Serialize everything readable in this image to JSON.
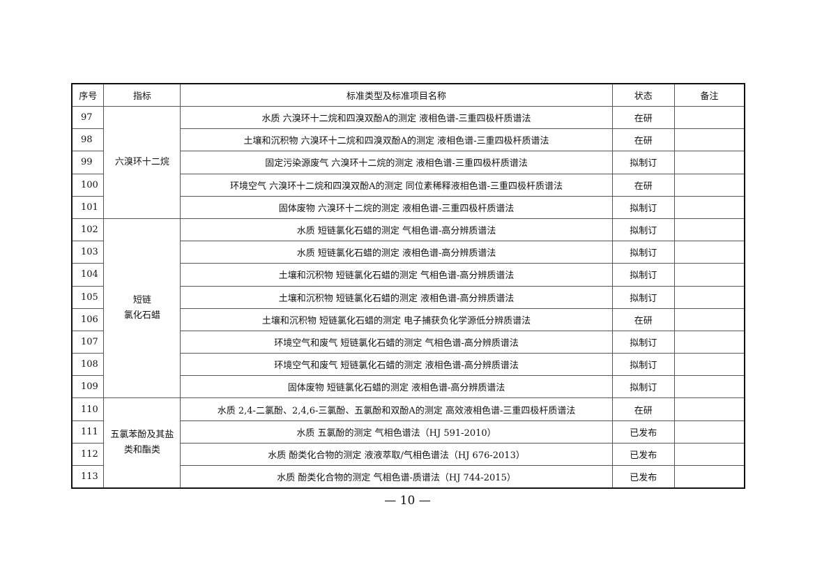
{
  "table": {
    "headers": [
      "序号",
      "指标",
      "标准类型及标准项目名称",
      "状态",
      "备注"
    ],
    "groups": [
      {
        "indicator": "六溴环十二烷",
        "rows": [
          {
            "no": "97",
            "name": "水质 六溴环十二烷和四溴双酚A的测定 液相色谱-三重四极杆质谱法",
            "status": "在研",
            "note": ""
          },
          {
            "no": "98",
            "name": "土壤和沉积物 六溴环十二烷和四溴双酚A的测定 液相色谱-三重四极杆质谱法",
            "status": "在研",
            "note": ""
          },
          {
            "no": "99",
            "name": "固定污染源废气 六溴环十二烷的测定 液相色谱-三重四极杆质谱法",
            "status": "拟制订",
            "note": ""
          },
          {
            "no": "100",
            "name": "环境空气 六溴环十二烷和四溴双酚A的测定 同位素稀释液相色谱-三重四极杆质谱法",
            "status": "在研",
            "note": ""
          },
          {
            "no": "101",
            "name": "固体废物 六溴环十二烷的测定 液相色谱-三重四极杆质谱法",
            "status": "拟制订",
            "note": ""
          }
        ]
      },
      {
        "indicator": "短链\n氯化石蜡",
        "rows": [
          {
            "no": "102",
            "name": "水质 短链氯化石蜡的测定 气相色谱-高分辨质谱法",
            "status": "拟制订",
            "note": ""
          },
          {
            "no": "103",
            "name": "水质 短链氯化石蜡的测定 液相色谱-高分辨质谱法",
            "status": "拟制订",
            "note": ""
          },
          {
            "no": "104",
            "name": "土壤和沉积物 短链氯化石蜡的测定 气相色谱-高分辨质谱法",
            "status": "拟制订",
            "note": ""
          },
          {
            "no": "105",
            "name": "土壤和沉积物 短链氯化石蜡的测定 液相色谱-高分辨质谱法",
            "status": "拟制订",
            "note": ""
          },
          {
            "no": "106",
            "name": "土壤和沉积物 短链氯化石蜡的测定 电子捕获负化学源低分辨质谱法",
            "status": "在研",
            "note": ""
          },
          {
            "no": "107",
            "name": "环境空气和废气 短链氯化石蜡的测定 气相色谱-高分辨质谱法",
            "status": "拟制订",
            "note": ""
          },
          {
            "no": "108",
            "name": "环境空气和废气 短链氯化石蜡的测定 液相色谱-高分辨质谱法",
            "status": "拟制订",
            "note": ""
          },
          {
            "no": "109",
            "name": "固体废物 短链氯化石蜡的测定 液相色谱-高分辨质谱法",
            "status": "拟制订",
            "note": ""
          }
        ]
      },
      {
        "indicator": "五氯苯酚及其盐\n类和酯类",
        "rows": [
          {
            "no": "110",
            "name": "水质 2,4-二氯酚、2,4,6-三氯酚、五氯酚和双酚A的测定 高效液相色谱-三重四极杆质谱法",
            "status": "在研",
            "note": ""
          },
          {
            "no": "111",
            "name": "水质 五氯酚的测定 气相色谱法（HJ 591-2010）",
            "status": "已发布",
            "note": ""
          },
          {
            "no": "112",
            "name": "水质 酚类化合物的测定 液液萃取/气相色谱法（HJ 676-2013）",
            "status": "已发布",
            "note": ""
          },
          {
            "no": "113",
            "name": "水质 酚类化合物的测定 气相色谱-质谱法（HJ 744-2015）",
            "status": "已发布",
            "note": ""
          }
        ]
      }
    ]
  },
  "footer": {
    "page_number": "— 10 —"
  }
}
